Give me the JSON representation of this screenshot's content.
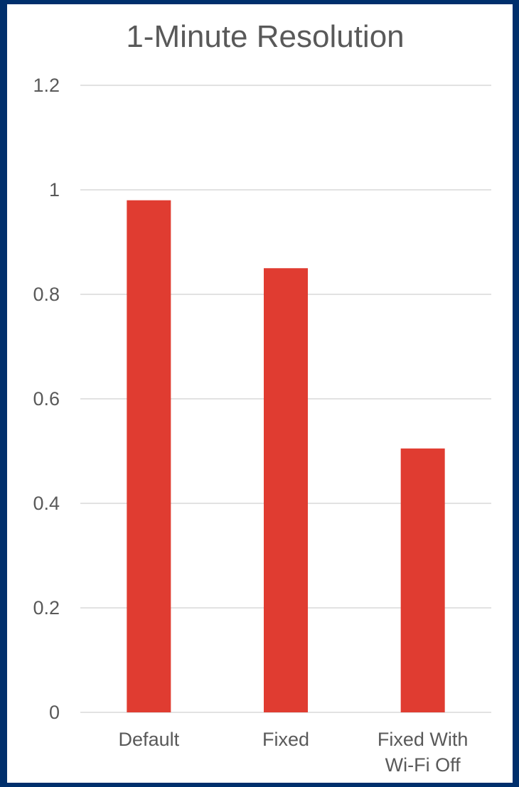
{
  "chart_data": {
    "type": "bar",
    "title": "1-Minute Resolution",
    "xlabel": "",
    "ylabel": "",
    "categories": [
      [
        "Default"
      ],
      [
        "Fixed"
      ],
      [
        "Fixed With",
        "Wi-Fi Off"
      ]
    ],
    "values": [
      0.98,
      0.85,
      0.505
    ],
    "ylim": [
      0,
      1.2
    ],
    "yticks": [
      "0",
      "0.2",
      "0.4",
      "0.6",
      "0.8",
      "1",
      "1.2"
    ],
    "grid": true,
    "legend": "none",
    "colors": {
      "bar": "#e03c31",
      "grid": "#d9d9d9",
      "text": "#595959",
      "border": "#002f6c"
    }
  }
}
